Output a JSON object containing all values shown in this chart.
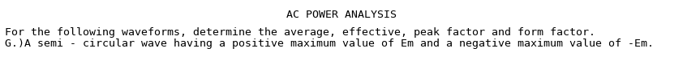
{
  "title": "AC POWER ANALYSIS",
  "line1": "For the following waveforms, determine the average, effective, peak factor and form factor.",
  "line2": "G.)A semi - circular wave having a positive maximum value of Em and a negative maximum value of -Em.",
  "bg_color": "#ffffff",
  "text_color": "#000000",
  "title_fontsize": 9.5,
  "body_fontsize": 9.5,
  "font_family": "monospace"
}
